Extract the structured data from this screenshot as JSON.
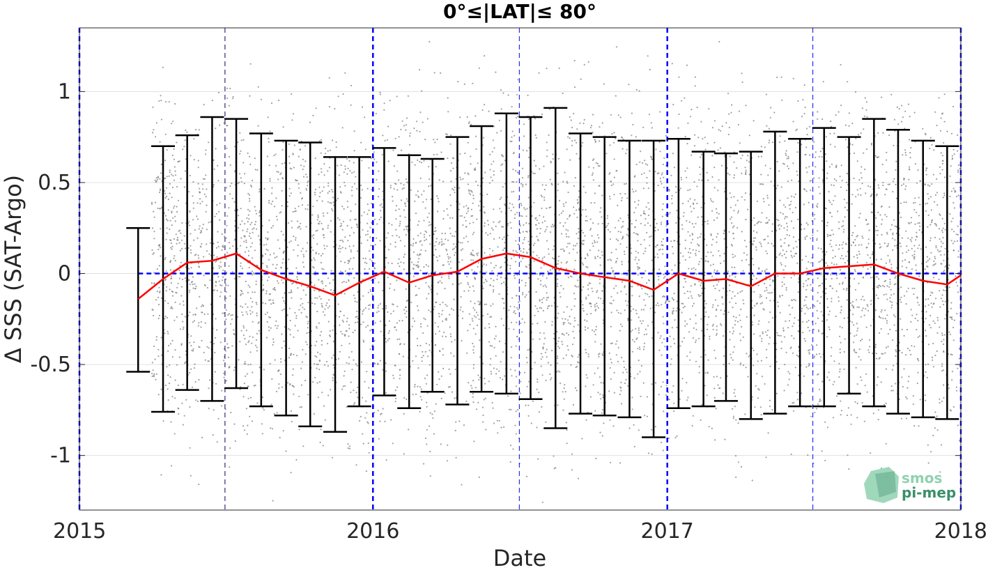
{
  "colors": {
    "points": "#808080",
    "mean_line": "#ff0000",
    "error_bars": "#000000",
    "reference_lines": "#0000ff",
    "grid": "#e0e0e0",
    "logo_green": "#8fd1b0",
    "logo_dark": "#3a8f6a"
  },
  "chart_data": {
    "type": "scatter",
    "title": "0°≤|LAT|≤ 80°",
    "xlabel": "Date",
    "ylabel": "Δ SSS (SAT-Argo)",
    "x_range": [
      "2015-01-01",
      "2018-01-01"
    ],
    "ylim": [
      -1.3,
      1.35
    ],
    "x_ticks": [
      {
        "date": "2015-01-01",
        "label": "2015"
      },
      {
        "date": "2016-01-01",
        "label": "2016"
      },
      {
        "date": "2017-01-01",
        "label": "2017"
      },
      {
        "date": "2018-01-01",
        "label": "2018"
      }
    ],
    "y_ticks": [
      {
        "value": 1,
        "label": "1"
      },
      {
        "value": 0.5,
        "label": "0.5"
      },
      {
        "value": 0,
        "label": "0"
      },
      {
        "value": -0.5,
        "label": "-0.5"
      },
      {
        "value": -1,
        "label": "-1"
      }
    ],
    "grid": true,
    "scatter_x_range": [
      "2015-04-01",
      "2018-01-01"
    ],
    "scatter_y_range": [
      -1.3,
      1.35
    ],
    "year_lines": [
      "2015-01-01",
      "2016-01-01",
      "2017-01-01",
      "2018-01-01"
    ],
    "midyear_lines": [
      "2015-07-01",
      "2016-07-01",
      "2017-07-01"
    ],
    "zero_line": 0,
    "series": [
      {
        "kind": "monthly_mean_with_std",
        "dates": [
          "2015-03-15",
          "2015-04-15",
          "2015-05-15",
          "2015-06-15",
          "2015-07-15",
          "2015-08-15",
          "2015-09-15",
          "2015-10-15",
          "2015-11-15",
          "2015-12-15",
          "2016-01-15",
          "2016-02-15",
          "2016-03-15",
          "2016-04-15",
          "2016-05-15",
          "2016-06-15",
          "2016-07-15",
          "2016-08-15",
          "2016-09-15",
          "2016-10-15",
          "2016-11-15",
          "2016-12-15",
          "2017-01-15",
          "2017-02-15",
          "2017-03-15",
          "2017-04-15",
          "2017-05-15",
          "2017-06-15",
          "2017-07-15",
          "2017-08-15",
          "2017-09-15",
          "2017-10-15",
          "2017-11-15",
          "2017-12-15"
        ],
        "mean": [
          -0.14,
          -0.03,
          0.06,
          0.07,
          0.11,
          0.02,
          -0.03,
          -0.07,
          -0.12,
          -0.05,
          0.01,
          -0.05,
          -0.01,
          0.01,
          0.08,
          0.11,
          0.09,
          0.03,
          0.0,
          -0.02,
          -0.04,
          -0.09,
          0.0,
          -0.04,
          -0.03,
          -0.07,
          0.0,
          0.0,
          0.03,
          0.04,
          0.05,
          0.0,
          -0.04,
          -0.06
        ],
        "upper": [
          0.25,
          0.7,
          0.76,
          0.86,
          0.85,
          0.77,
          0.73,
          0.72,
          0.64,
          0.64,
          0.69,
          0.65,
          0.63,
          0.75,
          0.81,
          0.88,
          0.86,
          0.91,
          0.77,
          0.75,
          0.73,
          0.73,
          0.74,
          0.67,
          0.66,
          0.67,
          0.78,
          0.74,
          0.8,
          0.75,
          0.85,
          0.79,
          0.73,
          0.7
        ],
        "lower": [
          -0.54,
          -0.76,
          -0.64,
          -0.7,
          -0.63,
          -0.73,
          -0.78,
          -0.84,
          -0.87,
          -0.73,
          -0.67,
          -0.74,
          -0.65,
          -0.72,
          -0.65,
          -0.66,
          -0.69,
          -0.85,
          -0.77,
          -0.78,
          -0.79,
          -0.9,
          -0.74,
          -0.73,
          -0.7,
          -0.8,
          -0.77,
          -0.73,
          -0.73,
          -0.66,
          -0.73,
          -0.77,
          -0.79,
          -0.8
        ],
        "end_point": {
          "date": "2018-01-01",
          "mean": -0.01
        }
      }
    ]
  },
  "logo": {
    "line1": "smos",
    "line2": "pi-mep"
  }
}
